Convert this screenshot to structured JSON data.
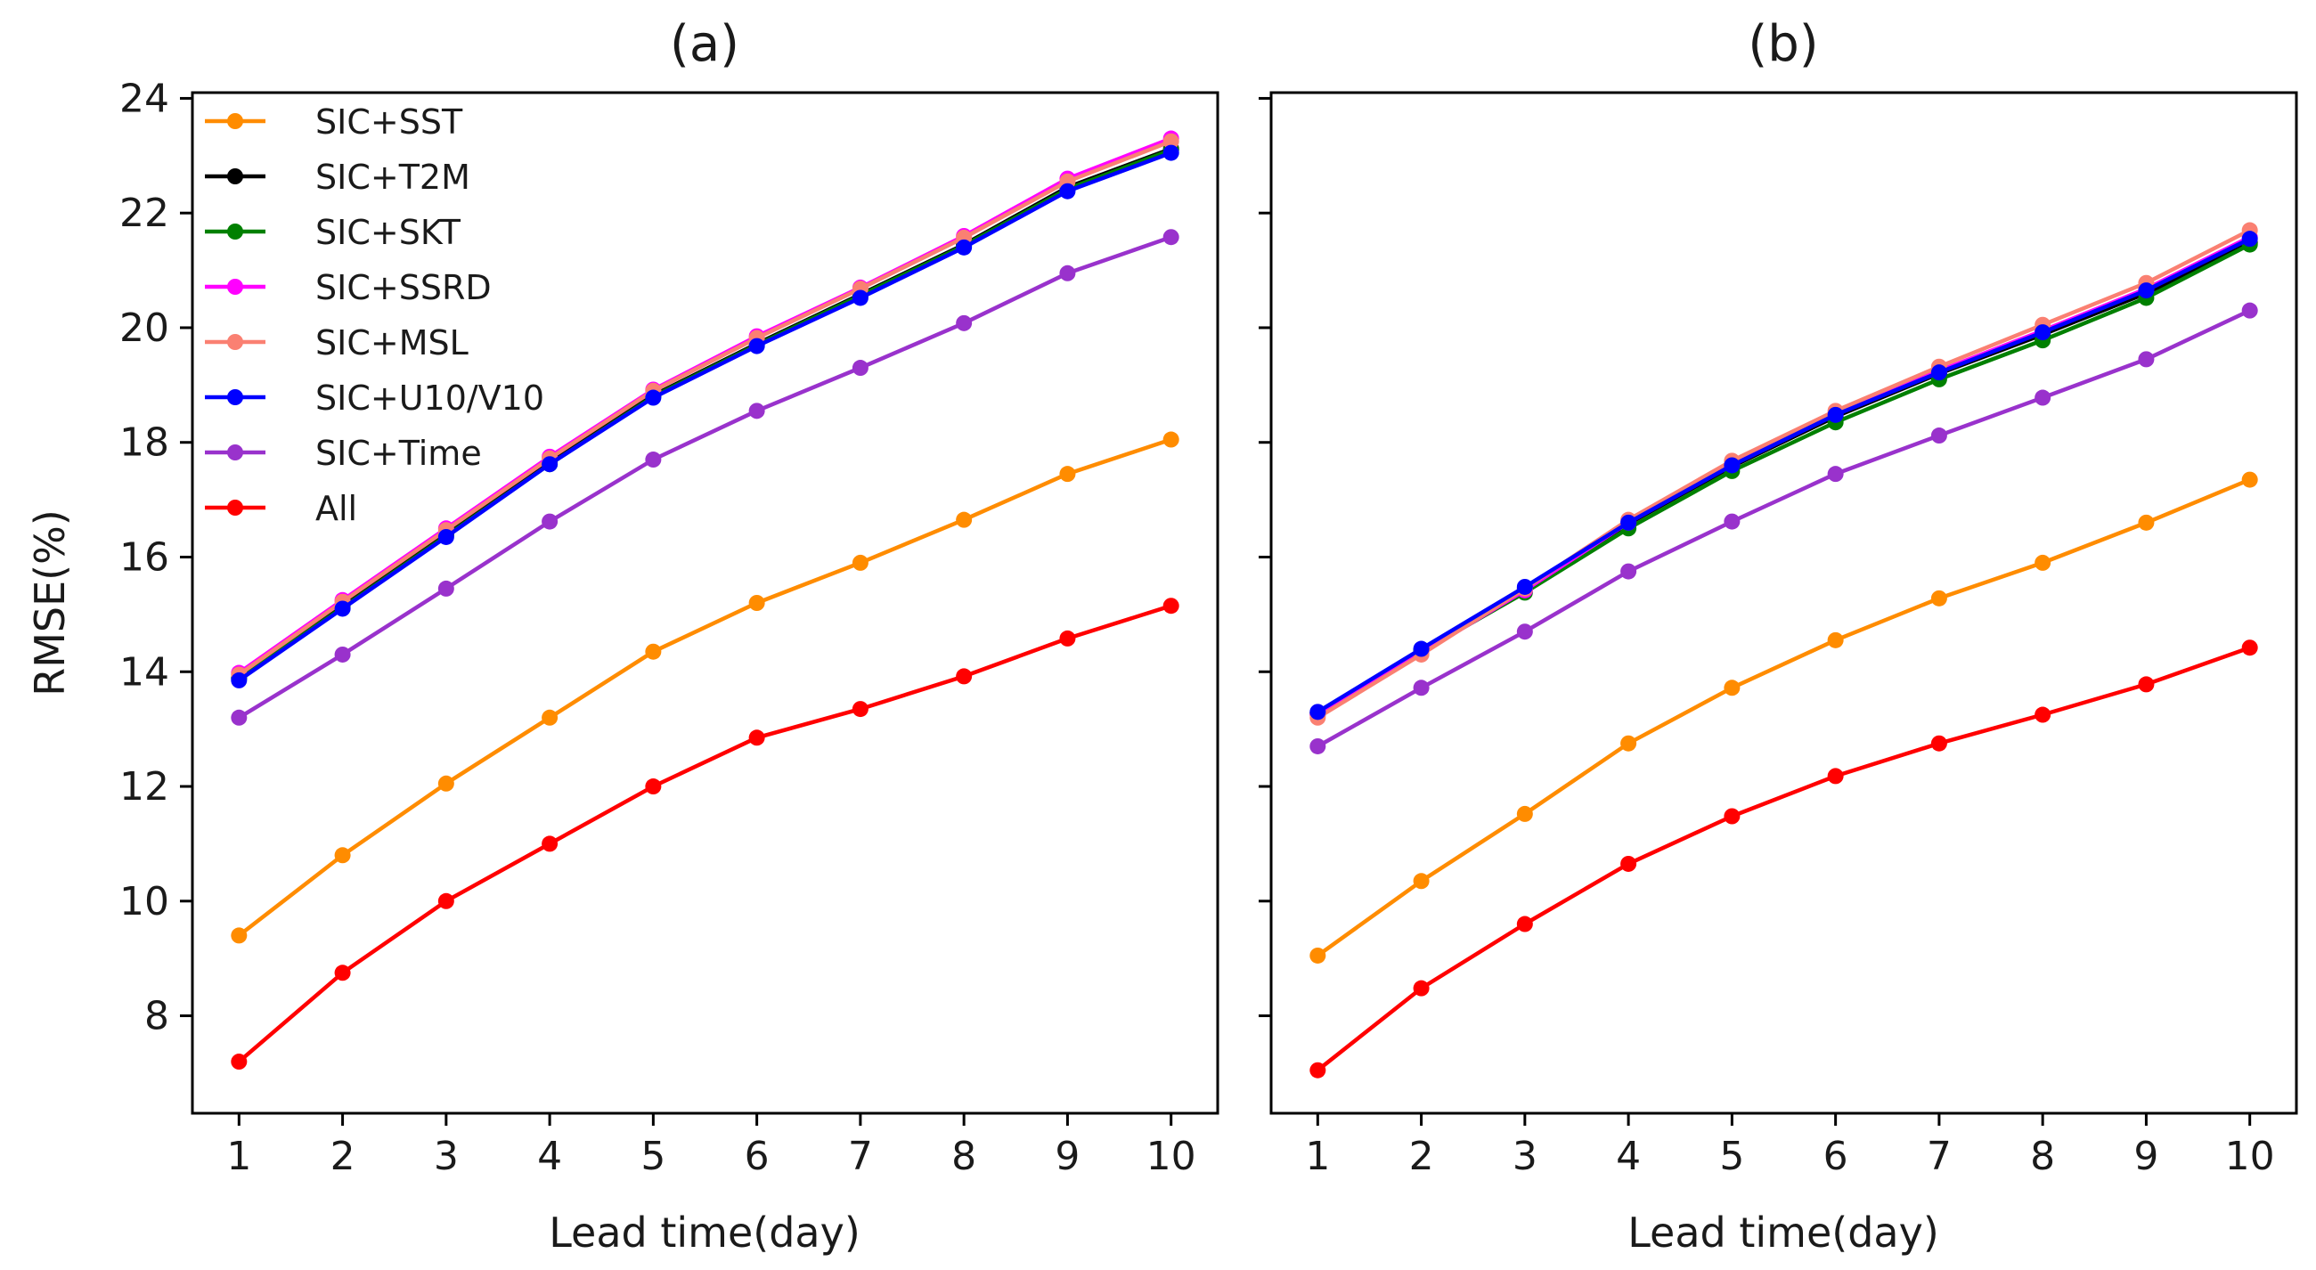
{
  "chart_data": [
    {
      "type": "line",
      "title": "(a)",
      "xlabel": "Lead time(day)",
      "ylabel": "RMSE(%)",
      "x": [
        1,
        2,
        3,
        4,
        5,
        6,
        7,
        8,
        9,
        10
      ],
      "xlim": [
        0.55,
        10.45
      ],
      "ylim": [
        6.3,
        24.1
      ],
      "yticks": [
        8,
        10,
        12,
        14,
        16,
        18,
        20,
        22,
        24
      ],
      "legend_position": "top-left",
      "grid": false,
      "series": [
        {
          "name": "SIC+SST",
          "color": "#ff8c00",
          "values": [
            9.4,
            10.8,
            12.05,
            13.2,
            14.35,
            15.2,
            15.9,
            16.65,
            17.45,
            18.05
          ]
        },
        {
          "name": "SIC+T2M",
          "color": "#000000",
          "values": [
            13.9,
            15.15,
            16.4,
            17.65,
            18.82,
            19.72,
            20.58,
            21.45,
            22.45,
            23.12
          ]
        },
        {
          "name": "SIC+SKT",
          "color": "#008000",
          "values": [
            13.88,
            15.12,
            16.37,
            17.62,
            18.8,
            19.7,
            20.56,
            21.43,
            22.42,
            23.1
          ]
        },
        {
          "name": "SIC+SSRD",
          "color": "#ff00ff",
          "values": [
            13.98,
            15.25,
            16.5,
            17.75,
            18.92,
            19.85,
            20.7,
            21.6,
            22.6,
            23.3
          ]
        },
        {
          "name": "SIC+MSL",
          "color": "#fa8072",
          "values": [
            13.95,
            15.22,
            16.47,
            17.72,
            18.9,
            19.82,
            20.68,
            21.57,
            22.55,
            23.25
          ]
        },
        {
          "name": "SIC+U10/V10",
          "color": "#0000ff",
          "values": [
            13.85,
            15.1,
            16.35,
            17.62,
            18.78,
            19.68,
            20.52,
            21.4,
            22.38,
            23.05
          ]
        },
        {
          "name": "SIC+Time",
          "color": "#9932cc",
          "values": [
            13.2,
            14.3,
            15.45,
            16.62,
            17.7,
            18.55,
            19.3,
            20.08,
            20.95,
            21.58
          ]
        },
        {
          "name": "All",
          "color": "#ff0000",
          "values": [
            7.2,
            8.75,
            10.0,
            11.0,
            12.0,
            12.85,
            13.35,
            13.92,
            14.58,
            15.15
          ]
        }
      ]
    },
    {
      "type": "line",
      "title": "(b)",
      "xlabel": "Lead time(day)",
      "ylabel": "",
      "x": [
        1,
        2,
        3,
        4,
        5,
        6,
        7,
        8,
        9,
        10
      ],
      "xlim": [
        0.55,
        10.45
      ],
      "ylim": [
        6.3,
        24.1
      ],
      "yticks": [
        8,
        10,
        12,
        14,
        16,
        18,
        20,
        22,
        24
      ],
      "grid": false,
      "series": [
        {
          "name": "SIC+SST",
          "color": "#ff8c00",
          "values": [
            9.05,
            10.35,
            11.52,
            12.75,
            13.72,
            14.55,
            15.28,
            15.9,
            16.6,
            17.35
          ]
        },
        {
          "name": "SIC+T2M",
          "color": "#000000",
          "values": [
            13.28,
            14.38,
            15.45,
            16.58,
            17.58,
            18.45,
            19.2,
            19.88,
            20.6,
            21.48
          ]
        },
        {
          "name": "SIC+SKT",
          "color": "#008000",
          "values": [
            13.25,
            14.35,
            15.38,
            16.5,
            17.5,
            18.35,
            19.1,
            19.78,
            20.52,
            21.45
          ]
        },
        {
          "name": "SIC+SSRD",
          "color": "#ff00ff",
          "values": [
            13.25,
            14.32,
            15.42,
            16.6,
            17.62,
            18.5,
            19.25,
            19.95,
            20.68,
            21.58
          ]
        },
        {
          "name": "SIC+MSL",
          "color": "#fa8072",
          "values": [
            13.2,
            14.3,
            15.45,
            16.65,
            17.68,
            18.55,
            19.32,
            20.05,
            20.78,
            21.7
          ]
        },
        {
          "name": "SIC+U10/V10",
          "color": "#0000ff",
          "values": [
            13.3,
            14.4,
            15.48,
            16.6,
            17.6,
            18.48,
            19.22,
            19.92,
            20.65,
            21.55
          ]
        },
        {
          "name": "SIC+Time",
          "color": "#9932cc",
          "values": [
            12.7,
            13.72,
            14.7,
            15.75,
            16.62,
            17.45,
            18.12,
            18.78,
            19.45,
            20.3
          ]
        },
        {
          "name": "All",
          "color": "#ff0000",
          "values": [
            7.05,
            8.48,
            9.6,
            10.65,
            11.48,
            12.18,
            12.75,
            13.25,
            13.78,
            14.42
          ]
        }
      ]
    }
  ]
}
